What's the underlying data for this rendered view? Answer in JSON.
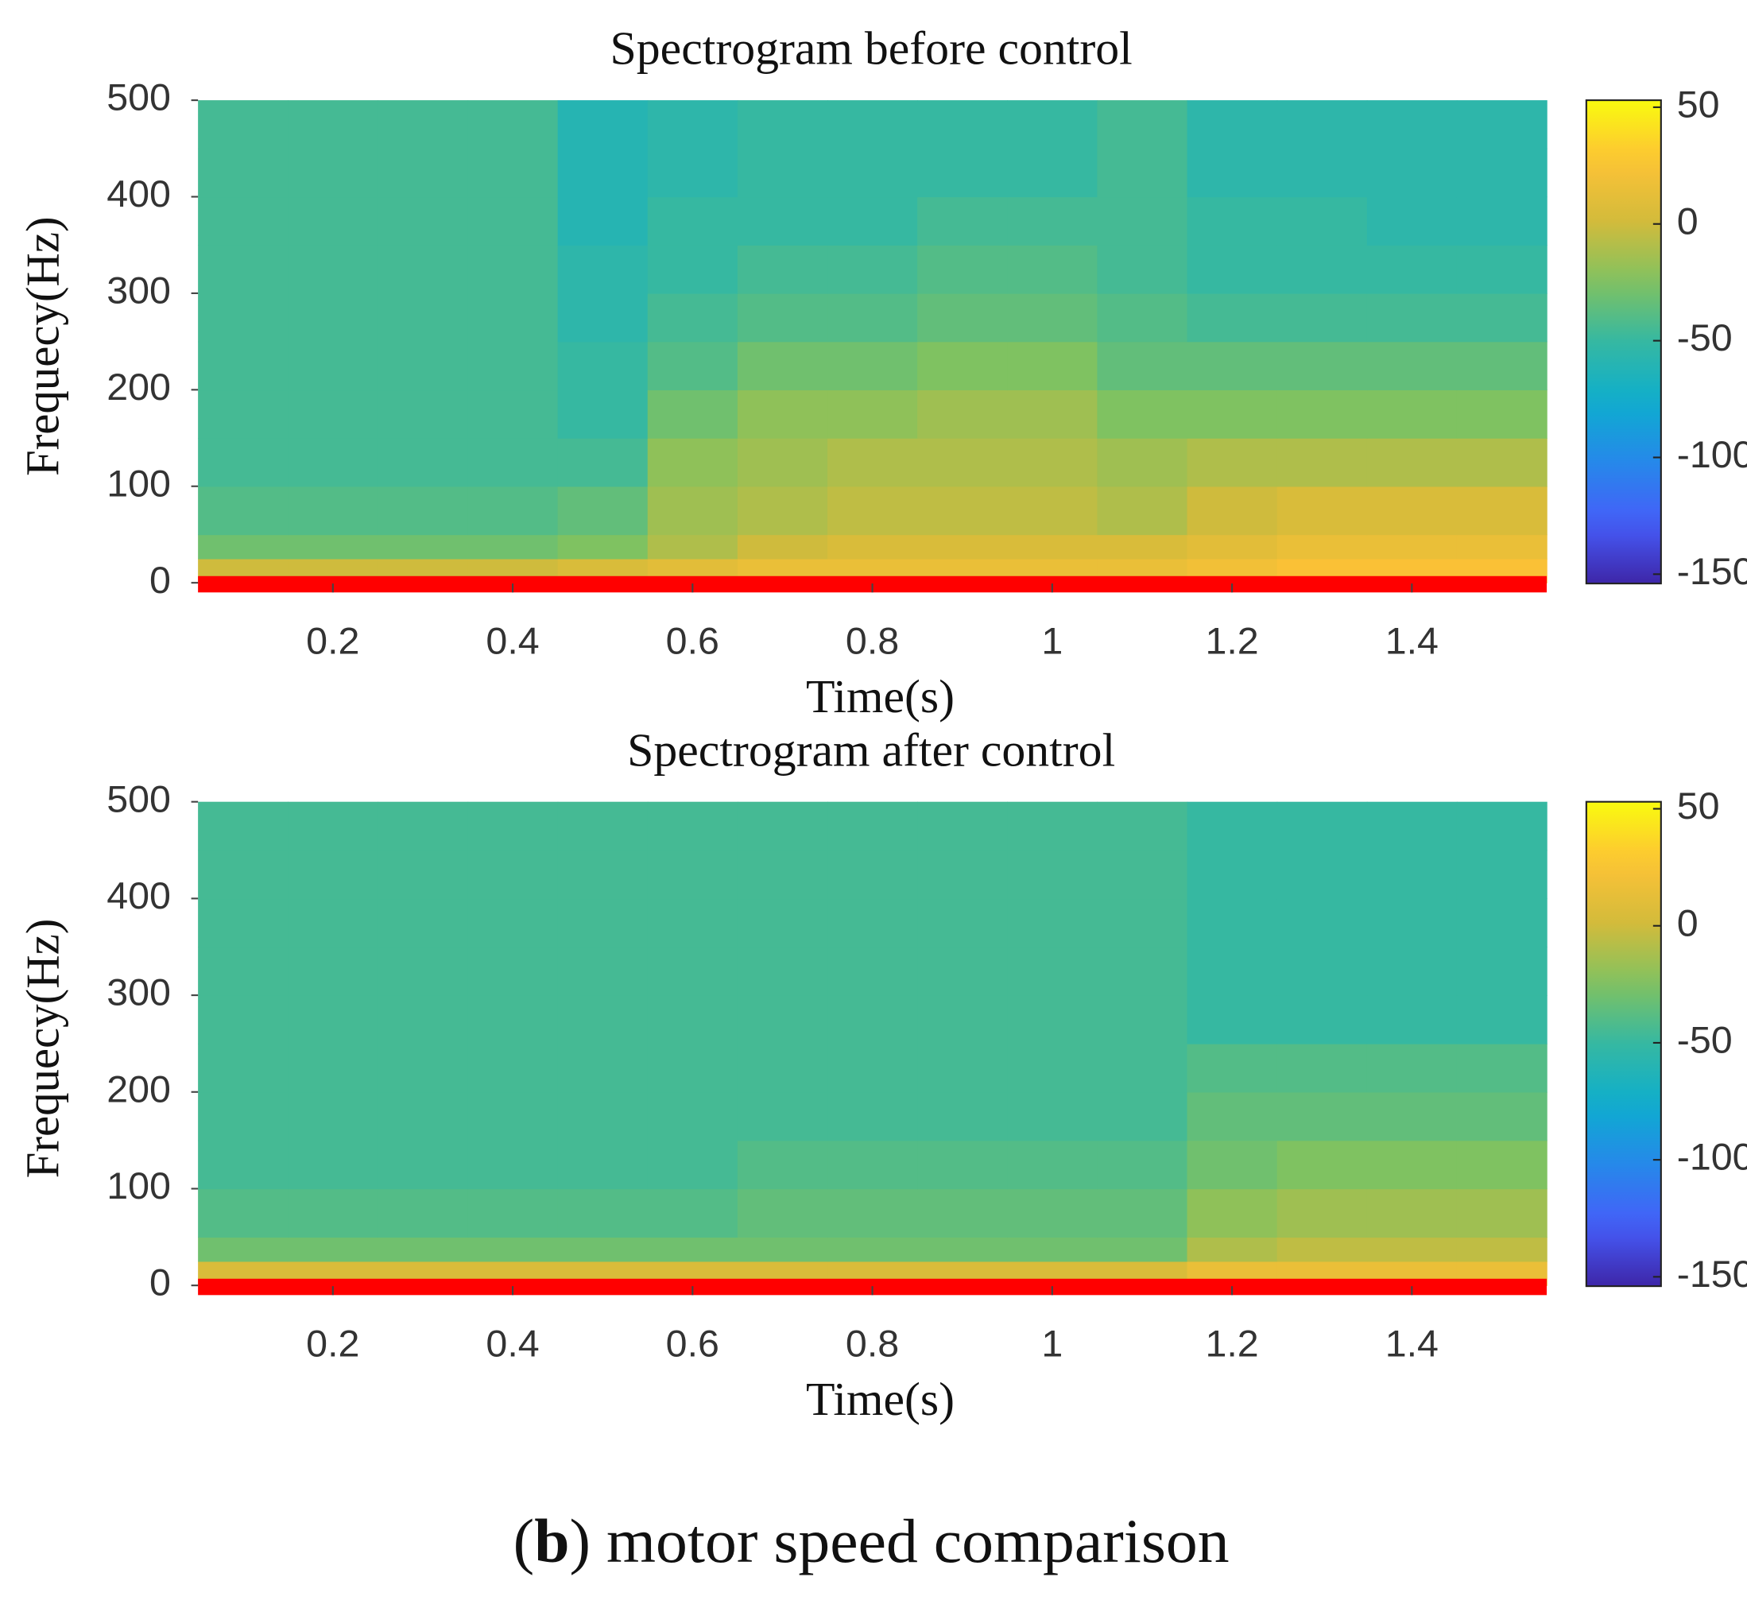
{
  "chart_data": [
    {
      "type": "heatmap",
      "title": "Spectrogram before control",
      "xlabel": "Time(s)",
      "ylabel": "Frequecy(Hz)",
      "colormap": "parula",
      "baseline_color": "#ff0000",
      "x": [
        0.1,
        0.2,
        0.3,
        0.4,
        0.5,
        0.6,
        0.7,
        0.8,
        0.9,
        1.0,
        1.1,
        1.2,
        1.3,
        1.4,
        1.5
      ],
      "y_bins": [
        0,
        25,
        50,
        100,
        150,
        200,
        250,
        300,
        350,
        400,
        450,
        500
      ],
      "values": [
        [
          0,
          0,
          0,
          0,
          5,
          10,
          15,
          15,
          15,
          15,
          15,
          20,
          25,
          25,
          25
        ],
        [
          -30,
          -30,
          -30,
          -30,
          -25,
          -10,
          0,
          5,
          5,
          5,
          5,
          10,
          15,
          15,
          15
        ],
        [
          -40,
          -40,
          -40,
          -40,
          -35,
          -15,
          -10,
          -5,
          -5,
          -5,
          -10,
          0,
          5,
          5,
          5
        ],
        [
          -45,
          -45,
          -45,
          -45,
          -45,
          -20,
          -15,
          -10,
          -10,
          -10,
          -15,
          -10,
          -10,
          -10,
          -10
        ],
        [
          -45,
          -45,
          -45,
          -45,
          -50,
          -30,
          -20,
          -20,
          -15,
          -15,
          -25,
          -25,
          -25,
          -25,
          -25
        ],
        [
          -45,
          -45,
          -45,
          -45,
          -50,
          -40,
          -30,
          -30,
          -25,
          -25,
          -35,
          -35,
          -35,
          -35,
          -35
        ],
        [
          -45,
          -45,
          -45,
          -45,
          -55,
          -45,
          -40,
          -40,
          -35,
          -35,
          -40,
          -45,
          -45,
          -45,
          -45
        ],
        [
          -45,
          -45,
          -45,
          -45,
          -55,
          -50,
          -45,
          -45,
          -40,
          -40,
          -45,
          -50,
          -50,
          -50,
          -50
        ],
        [
          -45,
          -45,
          -45,
          -45,
          -60,
          -50,
          -50,
          -50,
          -45,
          -45,
          -45,
          -50,
          -50,
          -55,
          -55
        ],
        [
          -45,
          -45,
          -45,
          -45,
          -60,
          -55,
          -50,
          -50,
          -50,
          -50,
          -45,
          -55,
          -55,
          -55,
          -55
        ],
        [
          -45,
          -45,
          -45,
          -45,
          -60,
          -55,
          -50,
          -50,
          -50,
          -50,
          -45,
          -55,
          -55,
          -55,
          -55
        ]
      ],
      "xlim": [
        0.05,
        1.55
      ],
      "ylim": [
        -10,
        500
      ],
      "xticks": [
        0.2,
        0.4,
        0.6,
        0.8,
        1,
        1.2,
        1.4
      ],
      "yticks": [
        0,
        100,
        200,
        300,
        400,
        500
      ],
      "clim": [
        -154,
        53
      ],
      "cticks": [
        50,
        0,
        -50,
        -100,
        -150
      ]
    },
    {
      "type": "heatmap",
      "title": "Spectrogram after control",
      "xlabel": "Time(s)",
      "ylabel": "Frequecy(Hz)",
      "colormap": "parula",
      "baseline_color": "#ff0000",
      "x": [
        0.1,
        0.2,
        0.3,
        0.4,
        0.5,
        0.6,
        0.7,
        0.8,
        0.9,
        1.0,
        1.1,
        1.2,
        1.3,
        1.4,
        1.5
      ],
      "y_bins": [
        0,
        25,
        50,
        100,
        150,
        200,
        250,
        300,
        350,
        400,
        450,
        500
      ],
      "values": [
        [
          5,
          5,
          5,
          5,
          5,
          5,
          5,
          5,
          5,
          5,
          5,
          15,
          15,
          15,
          15
        ],
        [
          -30,
          -30,
          -30,
          -30,
          -30,
          -30,
          -30,
          -30,
          -30,
          -30,
          -30,
          -10,
          -5,
          -5,
          -5
        ],
        [
          -40,
          -40,
          -40,
          -40,
          -40,
          -40,
          -35,
          -35,
          -35,
          -35,
          -35,
          -20,
          -15,
          -15,
          -15
        ],
        [
          -45,
          -45,
          -45,
          -45,
          -45,
          -45,
          -40,
          -40,
          -40,
          -40,
          -40,
          -30,
          -25,
          -25,
          -25
        ],
        [
          -45,
          -45,
          -45,
          -45,
          -45,
          -45,
          -45,
          -45,
          -45,
          -45,
          -45,
          -35,
          -35,
          -35,
          -35
        ],
        [
          -45,
          -45,
          -45,
          -45,
          -45,
          -45,
          -45,
          -45,
          -45,
          -45,
          -45,
          -40,
          -40,
          -40,
          -40
        ],
        [
          -45,
          -45,
          -45,
          -45,
          -45,
          -45,
          -45,
          -45,
          -45,
          -45,
          -45,
          -50,
          -50,
          -50,
          -50
        ],
        [
          -45,
          -45,
          -45,
          -45,
          -45,
          -45,
          -45,
          -45,
          -45,
          -45,
          -45,
          -50,
          -50,
          -50,
          -50
        ],
        [
          -45,
          -45,
          -45,
          -45,
          -45,
          -45,
          -45,
          -45,
          -45,
          -45,
          -45,
          -50,
          -50,
          -50,
          -50
        ],
        [
          -45,
          -45,
          -45,
          -45,
          -45,
          -45,
          -45,
          -45,
          -45,
          -45,
          -45,
          -50,
          -50,
          -50,
          -50
        ],
        [
          -45,
          -45,
          -45,
          -45,
          -45,
          -45,
          -45,
          -45,
          -45,
          -45,
          -45,
          -50,
          -50,
          -50,
          -50
        ]
      ],
      "xlim": [
        0.05,
        1.55
      ],
      "ylim": [
        -10,
        500
      ],
      "xticks": [
        0.2,
        0.4,
        0.6,
        0.8,
        1,
        1.2,
        1.4
      ],
      "yticks": [
        0,
        100,
        200,
        300,
        400,
        500
      ],
      "clim": [
        -154,
        53
      ],
      "cticks": [
        50,
        0,
        -50,
        -100,
        -150
      ]
    }
  ],
  "caption": [
    "(",
    "b",
    ") motor speed comparison"
  ]
}
